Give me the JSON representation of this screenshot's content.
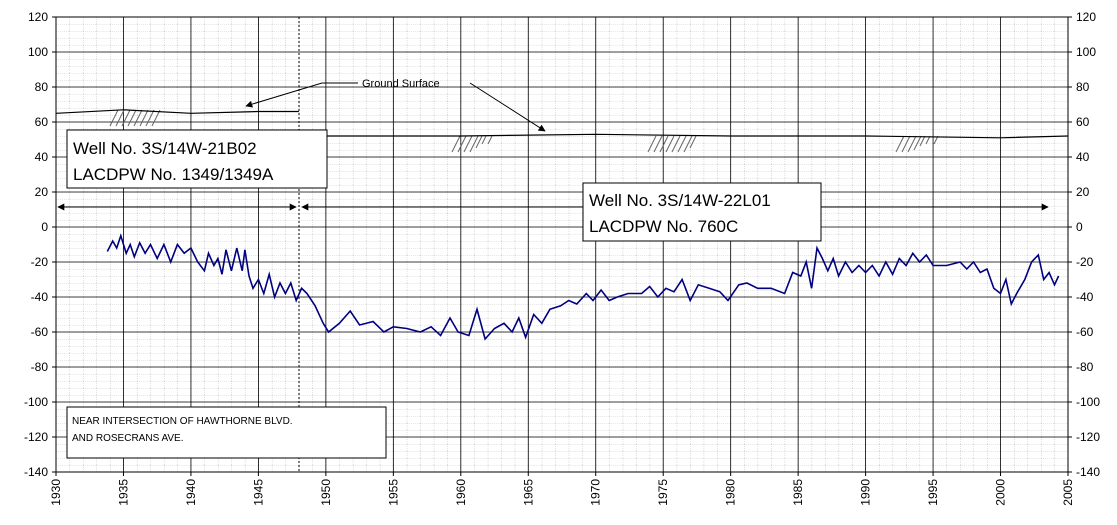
{
  "chart_data": {
    "type": "line",
    "xlim": [
      1930,
      2005
    ],
    "xticks": [
      1930,
      1935,
      1940,
      1945,
      1950,
      1955,
      1960,
      1965,
      1970,
      1975,
      1980,
      1985,
      1990,
      1995,
      2000,
      2005
    ],
    "ylim": [
      -140,
      120
    ],
    "yticks": [
      -140,
      -120,
      -100,
      -80,
      -60,
      -40,
      -20,
      0,
      20,
      40,
      60,
      80,
      100,
      120
    ],
    "grid": true,
    "series": [
      {
        "color": "#000080",
        "x": [
          1933.8,
          1934.2,
          1934.5,
          1934.8,
          1935.2,
          1935.5,
          1935.8,
          1936.2,
          1936.6,
          1937,
          1937.5,
          1938,
          1938.5,
          1939,
          1939.5,
          1940,
          1940.5,
          1941,
          1941.3,
          1941.7,
          1942,
          1942.3,
          1942.6,
          1943,
          1943.4,
          1943.8,
          1944,
          1944.3,
          1944.6,
          1945,
          1945.4,
          1945.8,
          1946.2,
          1946.6,
          1947,
          1947.4,
          1947.8,
          1948.2,
          1948.6,
          1949.2,
          1949.8,
          1950.2,
          1951,
          1951.8,
          1952.5,
          1953.5,
          1954.3,
          1955,
          1956,
          1957,
          1957.8,
          1958.5,
          1959.2,
          1959.8,
          1960.6,
          1961.2,
          1961.8,
          1962.5,
          1963.2,
          1963.8,
          1964.3,
          1964.8,
          1965.4,
          1966,
          1966.6,
          1967.4,
          1968,
          1968.6,
          1969.3,
          1969.8,
          1970.4,
          1971,
          1971.6,
          1972.4,
          1973.4,
          1974,
          1974.6,
          1975.2,
          1975.8,
          1976.4,
          1977,
          1977.6,
          1978.4,
          1979.2,
          1979.8,
          1980.6,
          1981.2,
          1982,
          1983,
          1984,
          1984.6,
          1985.2,
          1985.6,
          1986,
          1986.4,
          1986.8,
          1987.2,
          1987.6,
          1988,
          1988.5,
          1989,
          1989.5,
          1990,
          1990.5,
          1991,
          1991.5,
          1992,
          1992.5,
          1993,
          1993.5,
          1994,
          1994.5,
          1995,
          1996,
          1997,
          1997.5,
          1998,
          1998.5,
          1999,
          1999.5,
          2000,
          2000.4,
          2000.8,
          2001.2,
          2001.8,
          2002.3,
          2002.8,
          2003.2,
          2003.6,
          2004,
          2004.3
        ],
        "values": [
          -14,
          -8,
          -12,
          -5,
          -15,
          -10,
          -17,
          -9,
          -15,
          -10,
          -18,
          -10,
          -20,
          -10,
          -15,
          -12,
          -20,
          -25,
          -15,
          -22,
          -18,
          -27,
          -13,
          -25,
          -12,
          -25,
          -13,
          -28,
          -35,
          -30,
          -38,
          -27,
          -40,
          -32,
          -38,
          -32,
          -42,
          -35,
          -38,
          -45,
          -55,
          -60,
          -55,
          -48,
          -56,
          -54,
          -60,
          -57,
          -58,
          -60,
          -57,
          -62,
          -52,
          -60,
          -62,
          -47,
          -64,
          -58,
          -55,
          -60,
          -52,
          -63,
          -50,
          -55,
          -47,
          -45,
          -42,
          -44,
          -38,
          -42,
          -36,
          -42,
          -40,
          -38,
          -38,
          -34,
          -40,
          -35,
          -37,
          -30,
          -42,
          -33,
          -35,
          -37,
          -42,
          -33,
          -32,
          -35,
          -35,
          -38,
          -26,
          -28,
          -20,
          -35,
          -12,
          -18,
          -25,
          -18,
          -28,
          -20,
          -26,
          -22,
          -26,
          -22,
          -28,
          -20,
          -27,
          -18,
          -22,
          -15,
          -20,
          -16,
          -22,
          -22,
          -20,
          -24,
          -20,
          -26,
          -24,
          -35,
          -38,
          -30,
          -44,
          -38,
          -30,
          -20,
          -16,
          -30,
          -26,
          -33,
          -28
        ]
      },
      {
        "color": "#000000",
        "x": [
          1930,
          1935,
          1940,
          1945,
          1948,
          1948,
          1948,
          1960,
          1970,
          1980,
          1990,
          2000,
          2005
        ],
        "values": [
          65,
          67,
          65,
          66,
          66,
          null,
          52,
          52,
          53,
          52,
          52,
          51,
          52
        ]
      }
    ],
    "annotations": [
      "Ground Surface",
      "Well No. 3S/14W-21B02",
      "LACDPW No. 1349/1349A",
      "Well No. 3S/14W-22L01",
      "LACDPW No. 760C",
      "NEAR  INTERSECTION OF HAWTHORNE BLVD.",
      "AND ROSECRANS AVE."
    ]
  }
}
